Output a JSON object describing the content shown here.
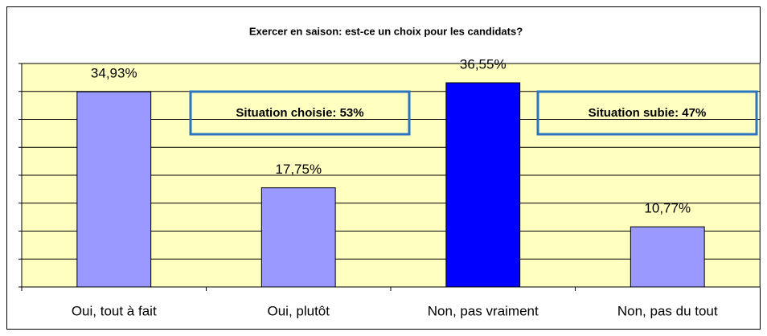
{
  "chart_data": {
    "type": "bar",
    "title": "Exercer en saison: est-ce un choix pour les candidats?",
    "categories": [
      "Oui, tout à fait",
      "Oui, plutôt",
      "Non, pas vraiment",
      "Non, pas du tout"
    ],
    "values": [
      34.93,
      17.75,
      36.55,
      10.77
    ],
    "value_labels": [
      "34,93%",
      "17,75%",
      "36,55%",
      "10,77%"
    ],
    "colors": [
      "#9999ff",
      "#9999ff",
      "#0000ff",
      "#9999ff"
    ],
    "ylim": [
      0,
      40
    ],
    "yticks": [
      0,
      5,
      10,
      15,
      20,
      25,
      30,
      35,
      40
    ],
    "grid": true,
    "annotations": [
      "Situation choisie: 53%",
      "Situation subie: 47%"
    ]
  }
}
